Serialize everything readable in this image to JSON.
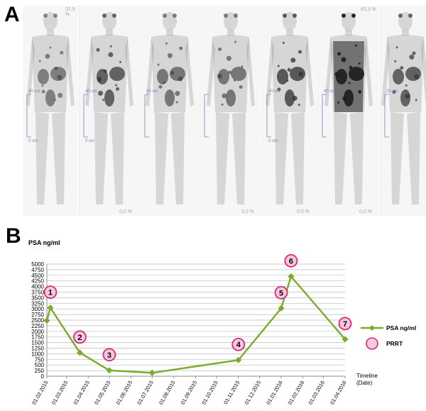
{
  "panel_labels": {
    "a": "A",
    "b": "B"
  },
  "scans": [
    {
      "value": "37,9 %",
      "scale_top": "40 cm",
      "scale_bottom": "0 cm",
      "pct": ""
    },
    {
      "value": "",
      "scale_top": "40 cm",
      "scale_bottom": "0 cm",
      "pct": "0,0 %"
    },
    {
      "value": "",
      "scale_top": "40 cm",
      "scale_bottom": "",
      "pct": ""
    },
    {
      "value": "",
      "scale_top": "",
      "scale_bottom": "",
      "pct": "0,0 %"
    },
    {
      "value": "",
      "scale_top": "40 cm",
      "scale_bottom": "0 cm",
      "pct": "0,0 %"
    },
    {
      "value": "63,3 %",
      "scale_top": "40 cm",
      "scale_bottom": "",
      "pct": "0,0 %"
    },
    {
      "value": "",
      "scale_top": "33 cm",
      "scale_bottom": "",
      "pct": ""
    }
  ],
  "colors": {
    "line": "#7aab2a",
    "marker_ring": "#d82a7a",
    "marker_fill": "#f7c8de",
    "grid": "#bbbbbb"
  },
  "chart_data": {
    "type": "line",
    "ylabel": "PSA ng/ml",
    "xlabel": "Timeline (Date)",
    "ylim": [
      0,
      5000
    ],
    "yticks": [
      0,
      250,
      500,
      750,
      1000,
      1250,
      1500,
      1750,
      2000,
      2250,
      2500,
      2750,
      3000,
      3250,
      3500,
      3750,
      4000,
      4250,
      4500,
      4750,
      5000
    ],
    "xticks": [
      "01.02.2015",
      "01.03.2015",
      "01.04.2015",
      "01.05.2015",
      "01.06.2015",
      "01.07.2015",
      "01.08.2015",
      "01.09.2015",
      "01.10.2015",
      "01.11.2015",
      "01.12.2015",
      "01.01.2016",
      "01.02.2016",
      "01.03.2016",
      "01.04.2016"
    ],
    "series": [
      {
        "name": "PSA ng/ml",
        "points": [
          {
            "x": "01.02.2015",
            "y": 2480
          },
          {
            "x": "06.02.2015",
            "y": 3050
          },
          {
            "x": "20.03.2015",
            "y": 1050
          },
          {
            "x": "01.05.2015",
            "y": 260
          },
          {
            "x": "01.07.2015",
            "y": 150
          },
          {
            "x": "01.11.2015",
            "y": 720
          },
          {
            "x": "01.01.2016",
            "y": 3030
          },
          {
            "x": "15.01.2016",
            "y": 4450
          },
          {
            "x": "01.04.2016",
            "y": 1650
          }
        ]
      }
    ],
    "prrt_markers": [
      {
        "label": "1",
        "x": "06.02.2015",
        "y": 3050
      },
      {
        "label": "2",
        "x": "20.03.2015",
        "y": 1050
      },
      {
        "label": "3",
        "x": "01.05.2015",
        "y": 260
      },
      {
        "label": "4",
        "x": "01.11.2015",
        "y": 720
      },
      {
        "label": "5",
        "x": "01.01.2016",
        "y": 3030
      },
      {
        "label": "6",
        "x": "15.01.2016",
        "y": 4450
      },
      {
        "label": "7",
        "x": "01.04.2016",
        "y": 1650
      }
    ],
    "legend": [
      {
        "label": "PSA ng/ml",
        "kind": "line"
      },
      {
        "label": "PRRT",
        "kind": "marker"
      }
    ],
    "legend_position": "right"
  }
}
